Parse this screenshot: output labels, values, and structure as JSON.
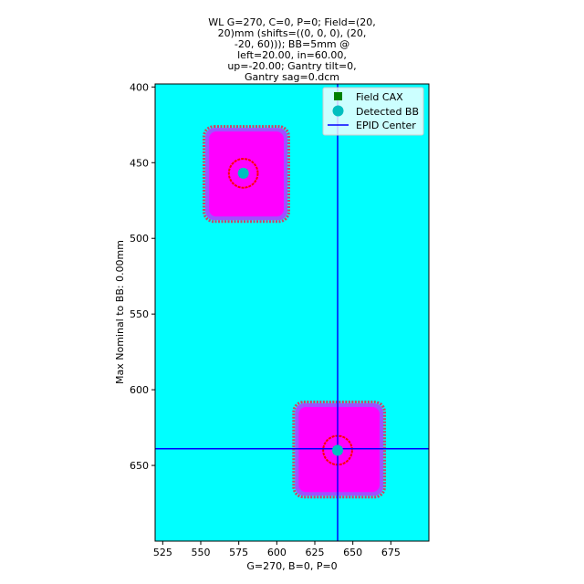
{
  "chart_data": {
    "type": "heatmap",
    "title_lines": [
      "WL G=270, C=0, P=0; Field=(20,",
      "20)mm (shifts=((0, 0, 0), (20,",
      "-20, 60))); BB=5mm @",
      "left=20.00, in=60.00,",
      "up=-20.00; Gantry tilt=0,",
      "Gantry sag=0.dcm"
    ],
    "xlabel": "G=270, B=0, P=0",
    "ylabel": "Max Nominal to BB: 0.00mm",
    "xlim": [
      520,
      700
    ],
    "ylim": [
      700,
      398
    ],
    "y_inverted": true,
    "xticks": [
      525,
      550,
      575,
      600,
      625,
      650,
      675
    ],
    "yticks": [
      400,
      450,
      500,
      550,
      600,
      650
    ],
    "background_color": "#00ffff",
    "field_color": "#ff00ff",
    "field_edge_color": "#a050ff",
    "fields": [
      {
        "x0": 553,
        "x1": 607,
        "y0": 427,
        "y1": 488
      },
      {
        "x0": 612,
        "x1": 670,
        "y0": 609,
        "y1": 670
      }
    ],
    "edge_marker_color": "#cc4466",
    "bb_circle_color": "#ff0000",
    "bb_circles": [
      {
        "cx": 578,
        "cy": 457,
        "r": 9.5
      },
      {
        "cx": 640,
        "cy": 640,
        "r": 9.5
      }
    ],
    "detected_bb": [
      {
        "x": 578,
        "y": 457
      },
      {
        "x": 640,
        "y": 640
      }
    ],
    "detected_bb_color": "#00bfbf",
    "field_cax_color": "#008000",
    "epid_center": {
      "x": 640,
      "y": 639
    },
    "epid_color": "#0000ff",
    "legend": {
      "placement": "top-right",
      "entries": [
        {
          "label": "Field CAX",
          "marker": "square",
          "color": "#008000"
        },
        {
          "label": "Detected BB",
          "marker": "circle",
          "color": "#00bfbf"
        },
        {
          "label": "EPID Center",
          "marker": "line",
          "color": "#0000ff"
        }
      ]
    }
  }
}
